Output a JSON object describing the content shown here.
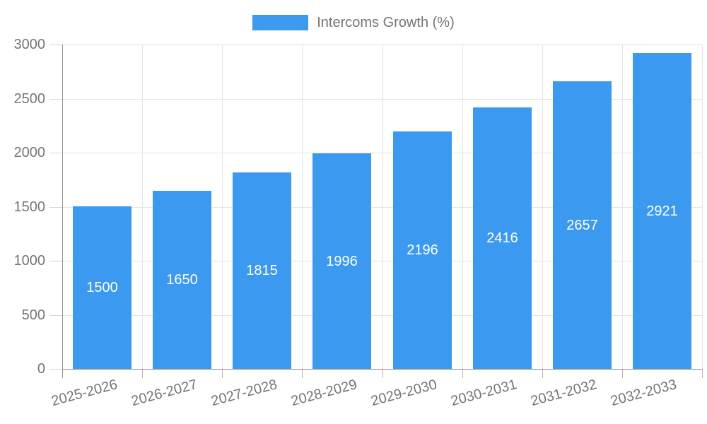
{
  "legend": {
    "label": "Intercoms Growth (%)",
    "swatch_color": "#3B99F0"
  },
  "chart_data": {
    "type": "bar",
    "title": "Intercoms Growth (%)",
    "series_name": "Intercoms Growth (%)",
    "categories": [
      "2025-2026",
      "2026-2027",
      "2027-2028",
      "2028-2029",
      "2029-2030",
      "2030-2031",
      "2031-2032",
      "2032-2033"
    ],
    "values": [
      1500,
      1650,
      1815,
      1996,
      2196,
      2416,
      2657,
      2921
    ],
    "value_labels": [
      "1500",
      "1650",
      "1815",
      "1996",
      "2196",
      "2416",
      "2657",
      "2921"
    ],
    "ylim": [
      0,
      3000
    ],
    "yticks": [
      0,
      500,
      1000,
      1500,
      2000,
      2500,
      3000
    ],
    "ytick_labels": [
      "0",
      "500",
      "1000",
      "1500",
      "2000",
      "2500",
      "3000"
    ],
    "grid": true,
    "legend_position": "top-center",
    "xlabel": "",
    "ylabel": "",
    "bar_color": "#3B99F0",
    "value_label_color": "#FFFFFF",
    "axis_text_color": "#757575",
    "grid_color": "#E4E4E4",
    "axis_line_color": "#949494",
    "x_label_rotation_deg": -15
  }
}
